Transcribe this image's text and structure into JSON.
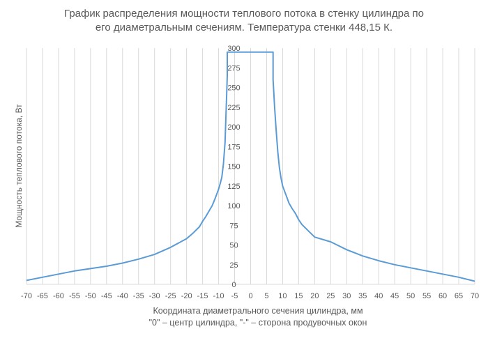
{
  "chart_data": {
    "type": "line",
    "title_lines": [
      "График распределения мощности теплового потока в стенку цилиндра по",
      "его диаметральным сечениям. Температура стенки 448,15 К."
    ],
    "xlabel_lines": [
      "Координата диаметрального сечения цилиндра, мм",
      "\"0\" – центр цилиндра, \"-\" – сторона продувочных окон"
    ],
    "ylabel": "Мощность теплового потока, Вт",
    "xlim": [
      -70,
      70
    ],
    "ylim": [
      0,
      300
    ],
    "xticks": [
      -70,
      -65,
      -60,
      -55,
      -50,
      -45,
      -40,
      -35,
      -30,
      -25,
      -20,
      -15,
      -10,
      -5,
      0,
      5,
      10,
      15,
      20,
      25,
      30,
      35,
      40,
      45,
      50,
      55,
      60,
      65,
      70
    ],
    "yticks": [
      0,
      25,
      50,
      75,
      100,
      125,
      150,
      175,
      200,
      225,
      250,
      275,
      300
    ],
    "grid": "vertical",
    "colors": {
      "line": "#5b9bd5",
      "grid": "#d9d9d9",
      "text": "#595959"
    },
    "series": [
      {
        "x": [
          -70,
          -65,
          -60,
          -55,
          -50,
          -45,
          -40,
          -35,
          -30,
          -25,
          -20,
          -18,
          -16,
          -15,
          -14,
          -13,
          -12,
          -11,
          -10,
          -9.5,
          -9,
          -8.5,
          -8,
          -7.5,
          -7.3,
          -7.3,
          7,
          7,
          7.5,
          8,
          8.5,
          9,
          9.5,
          10,
          11,
          12,
          13,
          14,
          15,
          16,
          18,
          20,
          25,
          30,
          35,
          40,
          45,
          50,
          55,
          60,
          65,
          70
        ],
        "y": [
          5,
          9,
          13,
          17,
          20,
          23,
          27,
          32,
          38,
          47,
          58,
          65,
          73,
          80,
          86,
          93,
          100,
          110,
          121,
          128,
          136,
          153,
          180,
          240,
          265,
          295,
          295,
          260,
          225,
          195,
          168,
          148,
          135,
          125,
          114,
          103,
          96,
          90,
          82,
          76,
          68,
          60,
          54,
          44,
          36,
          30,
          25,
          21,
          17,
          13,
          9,
          4
        ]
      }
    ]
  }
}
